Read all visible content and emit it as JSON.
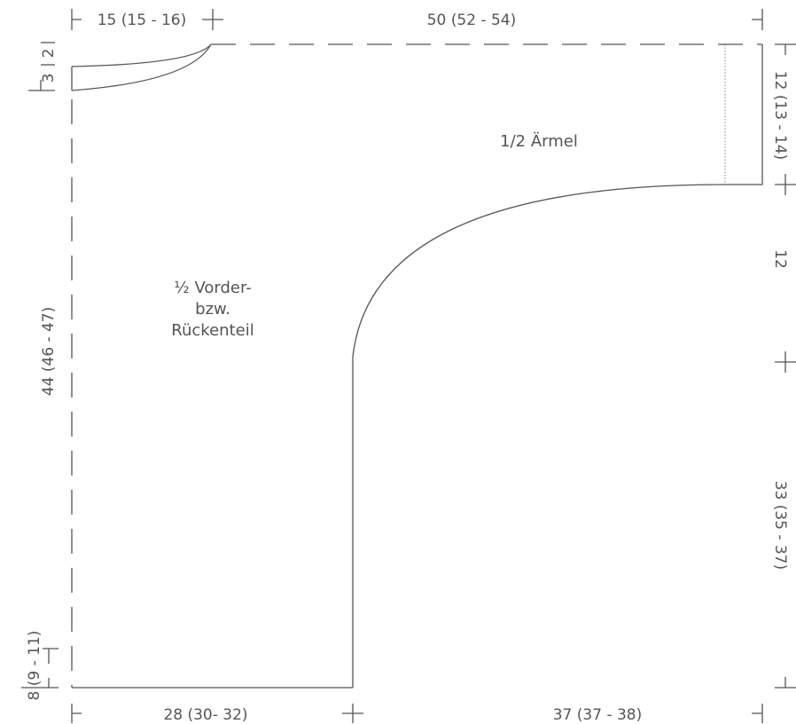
{
  "labels": {
    "sleeve": "1/2 Ärmel",
    "body": [
      "½ Vorder-",
      "bzw.",
      "Rückenteil"
    ]
  },
  "dimensions": {
    "top_neck": "15 (15 - 16)",
    "top_sleeve": "50 (52 - 54)",
    "left_3": "3",
    "left_2": "2",
    "left_height": "44 (46 - 47)",
    "left_bottom": "8 (9 - 11)",
    "bottom_body": "28 (30- 32)",
    "bottom_sleeve": "37 (37 - 38)",
    "right_top": "12 (13 - 14)",
    "right_middle": "12",
    "right_bottom": "33 (35 - 37)"
  }
}
